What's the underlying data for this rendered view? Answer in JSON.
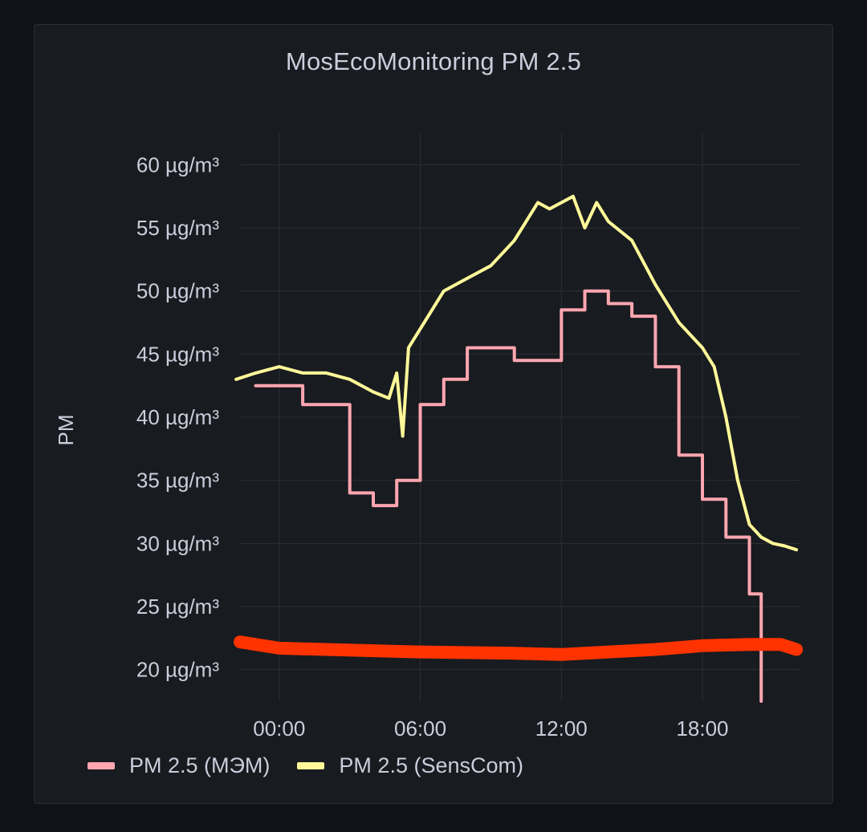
{
  "chart_data": {
    "type": "line",
    "title": "MosEcoMonitoring PM 2.5",
    "ylabel": "PM",
    "xlabel": "",
    "x_ticks": [
      "00:00",
      "06:00",
      "12:00",
      "18:00"
    ],
    "y_ticks": [
      "20 µg/m³",
      "25 µg/m³",
      "30 µg/m³",
      "35 µg/m³",
      "40 µg/m³",
      "45 µg/m³",
      "50 µg/m³",
      "55 µg/m³",
      "60 µg/m³"
    ],
    "ylim": [
      17.5,
      62.5
    ],
    "xlim": [
      "-01:40",
      "22:10"
    ],
    "grid": true,
    "legend_position": "bottom-left",
    "series": [
      {
        "name": "PM 2.5 (МЭМ)",
        "color": "#ffa6b0",
        "step": true,
        "x": [
          "-01:00",
          "00:00",
          "01:00",
          "02:00",
          "03:00",
          "04:00",
          "05:00",
          "06:00",
          "07:00",
          "08:00",
          "09:00",
          "10:00",
          "11:00",
          "12:00",
          "13:00",
          "14:00",
          "15:00",
          "16:00",
          "17:00",
          "18:00",
          "19:00",
          "20:00"
        ],
        "values": [
          42.5,
          42.5,
          41,
          41,
          34,
          33,
          35,
          41,
          43,
          45.5,
          45.5,
          44.5,
          44.5,
          48.5,
          50,
          49,
          48,
          44,
          37,
          33.5,
          30.5,
          26
        ]
      },
      {
        "name": "PM 2.5 (SensCom)",
        "color": "#fff899",
        "step": false,
        "x": [
          "-01:50",
          "-01:00",
          "00:00",
          "01:00",
          "02:00",
          "03:00",
          "04:00",
          "04:40",
          "05:00",
          "05:15",
          "05:30",
          "06:00",
          "07:00",
          "08:00",
          "09:00",
          "10:00",
          "11:00",
          "11:30",
          "12:00",
          "12:30",
          "13:00",
          "13:30",
          "14:00",
          "15:00",
          "16:00",
          "17:00",
          "18:00",
          "18:30",
          "19:00",
          "19:30",
          "20:00",
          "20:30",
          "21:00",
          "21:30",
          "22:00"
        ],
        "values": [
          43,
          43.5,
          44,
          43.5,
          43.5,
          43,
          42,
          41.5,
          43.5,
          38.5,
          45.5,
          47,
          50,
          51,
          52,
          54,
          57,
          56.5,
          57,
          57.5,
          55,
          57,
          55.5,
          54,
          50.5,
          47.5,
          45.5,
          44,
          40,
          35,
          31.5,
          30.5,
          30,
          29.8,
          29.5
        ]
      }
    ]
  }
}
